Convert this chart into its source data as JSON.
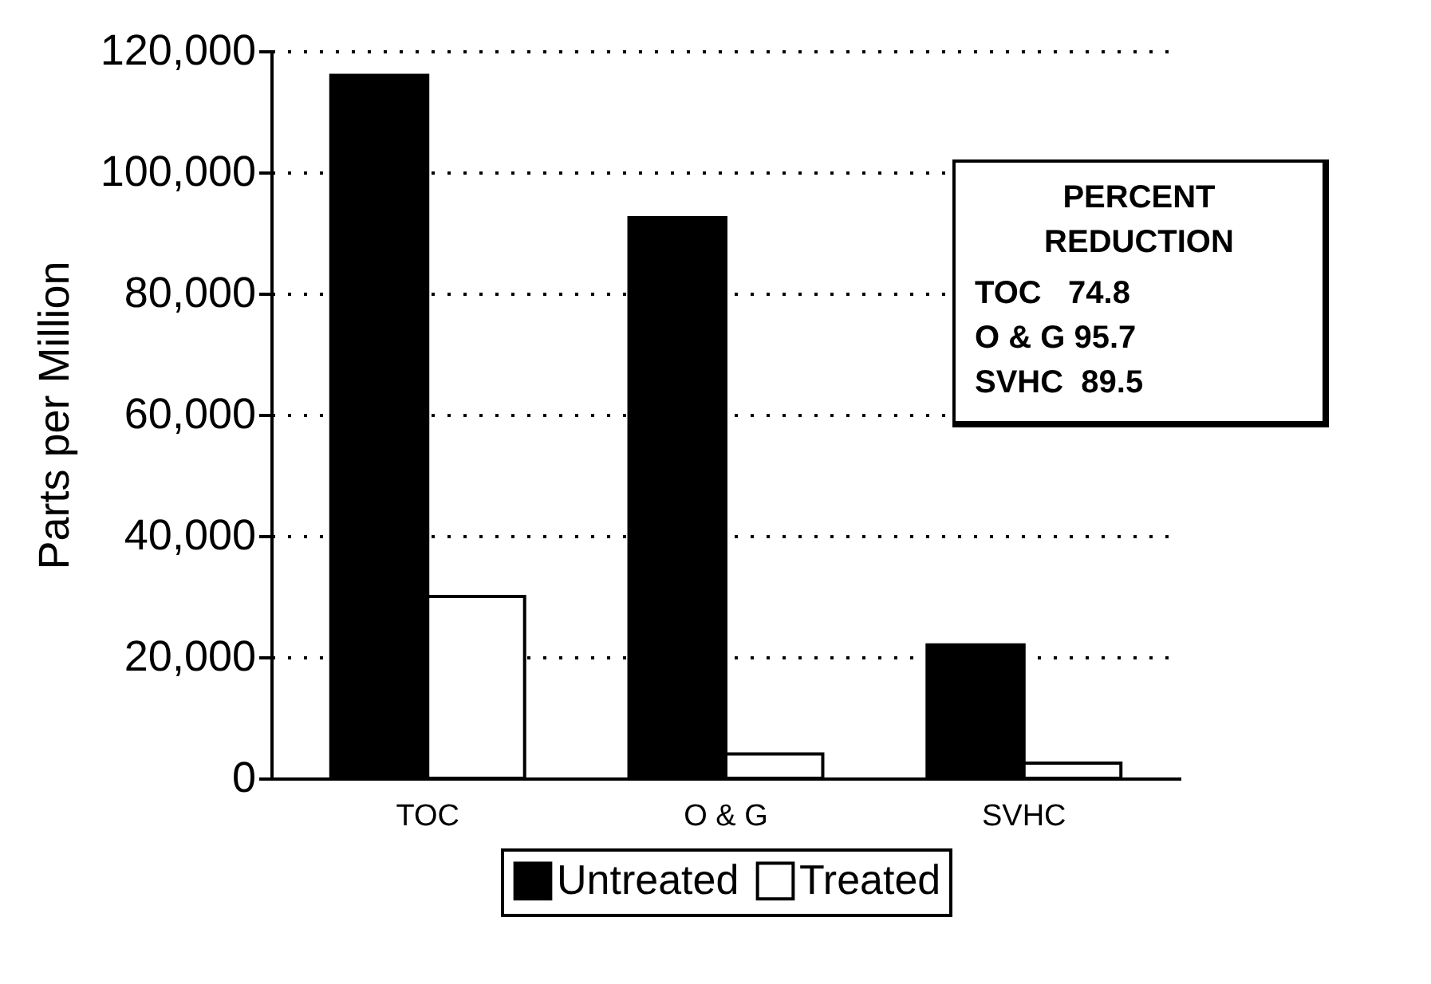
{
  "chart_data": {
    "type": "bar",
    "ylabel": "Parts per Million",
    "categories": [
      "TOC",
      "O & G",
      "SVHC"
    ],
    "series": [
      {
        "name": "Untreated",
        "color": "#000000",
        "values": [
          116000,
          92500,
          22000
        ]
      },
      {
        "name": "Treated",
        "color": "#ffffff",
        "values": [
          30000,
          4000,
          2500
        ]
      }
    ],
    "ylim": [
      0,
      120000
    ],
    "yticks": [
      0,
      {
        "value": 20000,
        "label": "20,000"
      },
      {
        "value": 40000,
        "label": "40,000"
      },
      {
        "value": 60000,
        "label": "60,000"
      },
      {
        "value": 80000,
        "label": "80,000"
      },
      {
        "value": 100000,
        "label": "100,000"
      },
      {
        "value": 120000,
        "label": "120,000"
      }
    ],
    "grid": "y",
    "legend": "bottom",
    "annotations": [
      "PERCENT REDUCTION",
      "TOC   74.8",
      "O & G 95.7",
      "SVHC  89.5"
    ]
  }
}
